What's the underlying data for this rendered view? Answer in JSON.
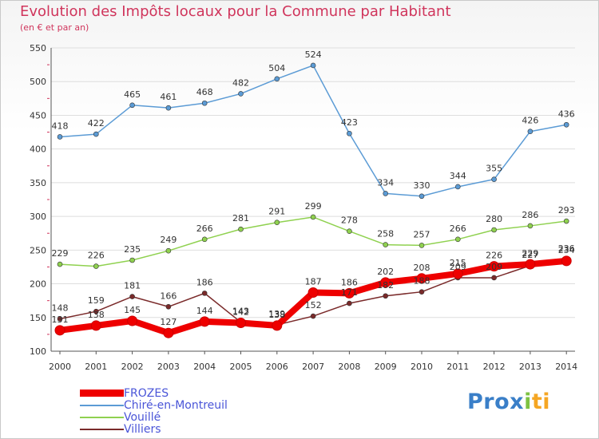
{
  "colors": {
    "title": "#d0355c",
    "legend_text": "#4a55d8",
    "logo_p": "#3a7fc8",
    "logo_rest": "#f5a623",
    "logo_x": "#3a7fc8",
    "logo_i": "#7dc242"
  },
  "logo": {
    "p": "Pro",
    "x": "x",
    "i": "i",
    "ti": "ti"
  },
  "chart_data": {
    "type": "line",
    "title": "Evolution des Impôts locaux pour la Commune par Habitant",
    "subtitle": "(en € et par an)",
    "xlabel": "",
    "ylabel": "",
    "ylim": [
      100,
      550
    ],
    "yticks": [
      100,
      150,
      200,
      250,
      300,
      350,
      400,
      450,
      500,
      550
    ],
    "grid": true,
    "legend_position": "bottom-left",
    "categories": [
      "2000",
      "2001",
      "2002",
      "2003",
      "2004",
      "2005",
      "2006",
      "2007",
      "2008",
      "2009",
      "2010",
      "2011",
      "2012",
      "2013",
      "2014"
    ],
    "series": [
      {
        "name": "FROZES",
        "color": "#ee0000",
        "values": [
          131,
          138,
          145,
          127,
          144,
          142,
          138,
          187,
          186,
          202,
          208,
          215,
          226,
          229,
          234
        ],
        "labels": [
          "131",
          "138",
          "145",
          "127",
          "144",
          "142",
          "138",
          "187",
          "186",
          "202",
          "208",
          "215",
          "226",
          "229",
          "234"
        ],
        "thick": true
      },
      {
        "name": "Chiré-en-Montreuil",
        "color": "#5b9bd5",
        "values": [
          418,
          422,
          465,
          461,
          468,
          482,
          504,
          524,
          423,
          334,
          330,
          344,
          355,
          426,
          436
        ],
        "labels": [
          "418",
          "422",
          "465",
          "461",
          "468",
          "482",
          "504",
          "524",
          "423",
          "334",
          "330",
          "344",
          "355",
          "426",
          "436"
        ],
        "thick": false
      },
      {
        "name": "Vouillé",
        "color": "#8fd14f",
        "values": [
          229,
          226,
          235,
          249,
          266,
          281,
          291,
          299,
          278,
          258,
          257,
          266,
          280,
          286,
          293
        ],
        "labels": [
          "229",
          "226",
          "235",
          "249",
          "266",
          "281",
          "291",
          "299",
          "278",
          "258",
          "257",
          "266",
          "280",
          "286",
          "293"
        ],
        "thick": false
      },
      {
        "name": "Villiers",
        "color": "#7a2a2a",
        "values": [
          148,
          159,
          181,
          166,
          186,
          143,
          139,
          152,
          171,
          182,
          188,
          209,
          209,
          227,
          236
        ],
        "labels": [
          "148",
          "159",
          "181",
          "166",
          "186",
          "143",
          "139",
          "152",
          "171",
          "182",
          "188",
          "209",
          "209",
          "227",
          "236"
        ],
        "thick": false
      }
    ]
  }
}
